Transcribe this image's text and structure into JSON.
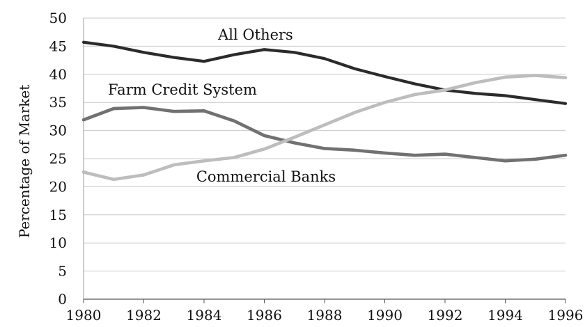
{
  "chart_data": {
    "type": "line",
    "title": "",
    "xlabel": "",
    "ylabel": "Percentage of Market",
    "x": [
      1980,
      1981,
      1982,
      1983,
      1984,
      1985,
      1986,
      1987,
      1988,
      1989,
      1990,
      1991,
      1992,
      1993,
      1994,
      1995,
      1996
    ],
    "xticks": [
      "1980",
      "1982",
      "1984",
      "1986",
      "1988",
      "1990",
      "1992",
      "1994",
      "1996"
    ],
    "yticks": [
      "0",
      "5",
      "10",
      "15",
      "20",
      "25",
      "30",
      "35",
      "40",
      "45",
      "50"
    ],
    "xlim": [
      1980,
      1996
    ],
    "ylim": [
      0,
      50
    ],
    "grid": {
      "horizontal": true,
      "vertical": false
    },
    "legend": "inline labels",
    "series": [
      {
        "name": "All Others",
        "color": "#2b2b2b",
        "values": [
          45.7,
          45.0,
          43.9,
          43.0,
          42.3,
          43.5,
          44.4,
          43.9,
          42.8,
          41.0,
          39.6,
          38.3,
          37.2,
          36.6,
          36.2,
          35.5,
          34.8
        ]
      },
      {
        "name": "Farm Credit System",
        "color": "#717171",
        "values": [
          31.9,
          33.9,
          34.1,
          33.4,
          33.5,
          31.7,
          29.1,
          27.8,
          26.8,
          26.5,
          26.0,
          25.6,
          25.8,
          25.2,
          24.6,
          24.9,
          25.6
        ]
      },
      {
        "name": "Commercial Banks",
        "color": "#bdbdbd",
        "values": [
          22.6,
          21.3,
          22.1,
          23.9,
          24.6,
          25.2,
          26.7,
          28.8,
          31.0,
          33.2,
          35.0,
          36.4,
          37.2,
          38.5,
          39.5,
          39.8,
          39.4
        ]
      }
    ]
  }
}
